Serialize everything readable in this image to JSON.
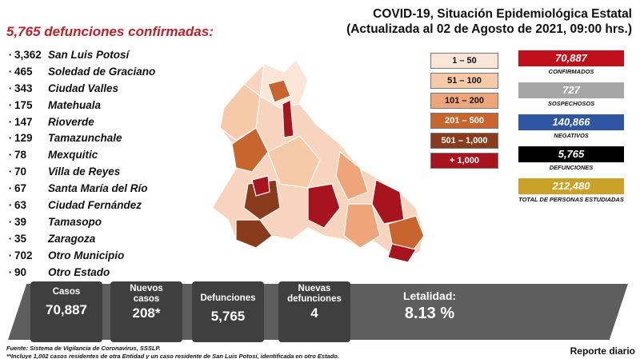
{
  "header": {
    "deaths_title": "5,765 defunciones confirmadas:",
    "title_line1": "COVID-19, Situación Epidemiológica Estatal",
    "title_line2": "(Actualizada al 02 de Agosto de 2021, 09:00 hrs.)"
  },
  "municipalities": [
    {
      "count": "3,362",
      "name": "San Luis Potosí"
    },
    {
      "count": "465",
      "name": "Soledad de Graciano"
    },
    {
      "count": "343",
      "name": "Ciudad Valles"
    },
    {
      "count": "175",
      "name": "Matehuala"
    },
    {
      "count": "147",
      "name": "Rioverde"
    },
    {
      "count": "129",
      "name": "Tamazunchale"
    },
    {
      "count": "78",
      "name": "Mexquitic"
    },
    {
      "count": "70",
      "name": "Villa de Reyes"
    },
    {
      "count": "67",
      "name": "Santa María del Río"
    },
    {
      "count": "63",
      "name": "Ciudad Fernández"
    },
    {
      "count": "39",
      "name": "Tamasopo"
    },
    {
      "count": "35",
      "name": "Zaragoza"
    },
    {
      "count": "702",
      "name": "Otro Municipio"
    },
    {
      "count": "90",
      "name": "Otro Estado"
    }
  ],
  "legend": [
    {
      "label": "1 – 50",
      "color": "#fbe5d6"
    },
    {
      "label": "51 – 100",
      "color": "#f6c9a8"
    },
    {
      "label": "101 – 200",
      "color": "#eea57a"
    },
    {
      "label": "201 – 500",
      "color": "#c8642e"
    },
    {
      "label": "501 – 1,000",
      "color": "#8a3b1c"
    },
    {
      "label": "+ 1,000",
      "color": "#a8141e"
    }
  ],
  "stats": [
    {
      "value": "70,887",
      "label": "CONFIRMADOS",
      "color": "#c0101c"
    },
    {
      "value": "727",
      "label": "SOSPECHOSOS",
      "color": "#a6a6a6"
    },
    {
      "value": "140,866",
      "label": "NEGATIVOS",
      "color": "#2f56a2"
    },
    {
      "value": "5,765",
      "label": "DEFUNCIONES",
      "color": "#000000"
    },
    {
      "value": "212,480",
      "label": "TOTAL DE PERSONAS ESTUDIADAS",
      "color": "#c9a227"
    }
  ],
  "kpis": {
    "cases_label": "Casos",
    "cases_value": "70,887",
    "new_cases_label": "Nuevos casos",
    "new_cases_value": "208*",
    "deaths_label": "Defunciones",
    "deaths_value": "5,765",
    "new_deaths_label": "Nuevas defunciones",
    "new_deaths_value": "4",
    "lethality_label": "Letalidad:",
    "lethality_value": "8.13 %"
  },
  "footer": {
    "source": "Fuente: Sistema de Vigilancia de Coronavirus, SSSLP.",
    "note": "**Incluye 1,002 casos residentes de otra Entidad y un caso residente de San Luis Potosí, identificada en otro Estado.",
    "report": "Reporte diario"
  }
}
